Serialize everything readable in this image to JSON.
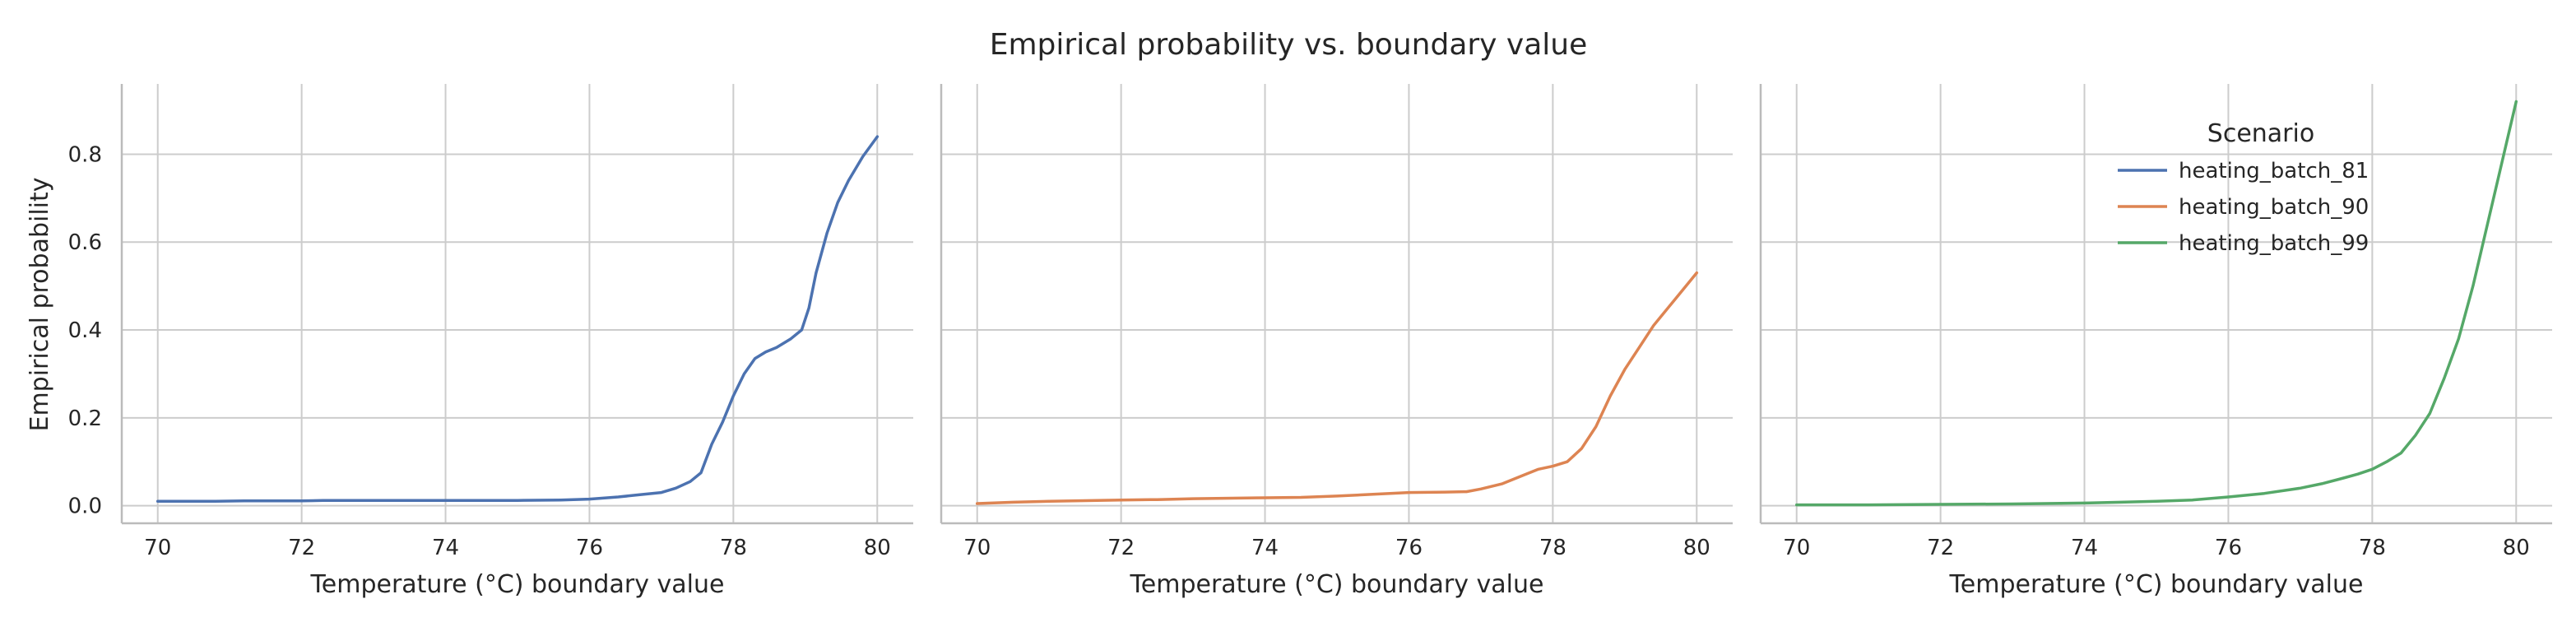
{
  "chart_data": {
    "type": "line",
    "title": "Empirical probability vs. boundary value",
    "ylabel": "Empirical probability",
    "xlabel": "Temperature (°C) boundary value",
    "xlim": [
      69.5,
      80.5
    ],
    "ylim": [
      -0.04,
      0.96
    ],
    "x_ticks": [
      "70",
      "72",
      "74",
      "76",
      "78",
      "80"
    ],
    "y_ticks": [
      "0.0",
      "0.2",
      "0.4",
      "0.6",
      "0.8"
    ],
    "grid": true,
    "legend": {
      "title": "Scenario",
      "placement": "top-right of third panel",
      "entries": [
        "heating_batch_81",
        "heating_batch_90",
        "heating_batch_99"
      ]
    },
    "series": [
      {
        "name": "heating_batch_81",
        "color": "#4c72b0",
        "panel": 0,
        "x": [
          70,
          70.8,
          71.2,
          72,
          72.3,
          73,
          74,
          75,
          75.6,
          76,
          76.4,
          76.7,
          77,
          77.2,
          77.4,
          77.55,
          77.7,
          77.85,
          78,
          78.15,
          78.3,
          78.45,
          78.6,
          78.8,
          78.95,
          79.05,
          79.15,
          79.3,
          79.45,
          79.6,
          79.8,
          80
        ],
        "y": [
          0.01,
          0.01,
          0.011,
          0.011,
          0.012,
          0.012,
          0.012,
          0.012,
          0.013,
          0.015,
          0.02,
          0.025,
          0.03,
          0.04,
          0.055,
          0.075,
          0.14,
          0.19,
          0.25,
          0.3,
          0.335,
          0.35,
          0.36,
          0.38,
          0.4,
          0.45,
          0.53,
          0.62,
          0.69,
          0.74,
          0.795,
          0.84
        ]
      },
      {
        "name": "heating_batch_90",
        "color": "#dd8452",
        "panel": 1,
        "x": [
          70,
          70.5,
          71,
          72,
          72.5,
          73,
          74,
          74.5,
          75,
          75.5,
          76,
          76.5,
          76.8,
          77,
          77.3,
          77.6,
          77.8,
          78,
          78.2,
          78.4,
          78.6,
          78.8,
          79,
          79.2,
          79.4,
          79.6,
          79.8,
          80
        ],
        "y": [
          0.005,
          0.008,
          0.01,
          0.013,
          0.014,
          0.016,
          0.018,
          0.019,
          0.022,
          0.026,
          0.03,
          0.031,
          0.032,
          0.038,
          0.05,
          0.07,
          0.083,
          0.09,
          0.1,
          0.13,
          0.18,
          0.25,
          0.31,
          0.36,
          0.41,
          0.45,
          0.49,
          0.53
        ]
      },
      {
        "name": "heating_batch_99",
        "color": "#55a868",
        "panel": 2,
        "x": [
          70,
          71,
          72,
          73,
          74,
          74.5,
          75,
          75.5,
          76,
          76.5,
          77,
          77.3,
          77.6,
          77.8,
          78,
          78.2,
          78.4,
          78.6,
          78.8,
          79,
          79.2,
          79.4,
          79.6,
          79.8,
          80
        ],
        "y": [
          0.002,
          0.002,
          0.003,
          0.004,
          0.006,
          0.008,
          0.01,
          0.013,
          0.02,
          0.028,
          0.04,
          0.05,
          0.063,
          0.072,
          0.083,
          0.1,
          0.12,
          0.16,
          0.21,
          0.29,
          0.38,
          0.5,
          0.64,
          0.78,
          0.92
        ]
      }
    ]
  }
}
